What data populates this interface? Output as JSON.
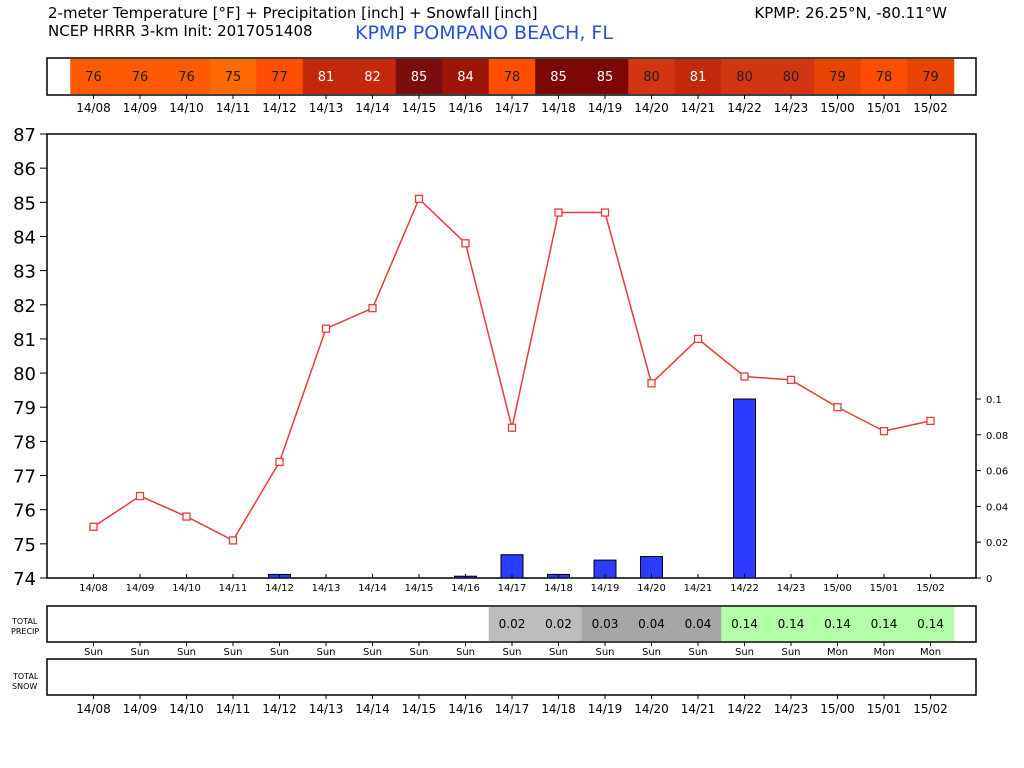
{
  "header": {
    "title_line1": "2-meter Temperature [°F] + Precipitation [inch] + Snowfall [inch]",
    "title_line2": "NCEP HRRR 3-km Init: 2017051408",
    "station_coords": "KPMP: 26.25°N, -80.11°W",
    "station_name": "KPMP POMPANO BEACH, FL"
  },
  "panels": {
    "precip_label": [
      "TOTAL",
      "PRECIP"
    ],
    "snow_label": [
      "TOTAL",
      "SNOW"
    ]
  },
  "chart_data": {
    "type": "line",
    "x": [
      "14/08",
      "14/09",
      "14/10",
      "14/11",
      "14/12",
      "14/13",
      "14/14",
      "14/15",
      "14/16",
      "14/17",
      "14/18",
      "14/19",
      "14/20",
      "14/21",
      "14/22",
      "14/23",
      "15/00",
      "15/01",
      "15/02"
    ],
    "temperature": [
      75.5,
      76.4,
      75.8,
      75.1,
      77.4,
      81.3,
      81.9,
      85.1,
      83.8,
      78.4,
      84.7,
      84.7,
      79.7,
      81.0,
      79.9,
      79.8,
      79.0,
      78.3,
      78.6
    ],
    "temperature_strip": [
      76,
      76,
      76,
      75,
      77,
      81,
      82,
      85,
      84,
      78,
      85,
      85,
      80,
      81,
      80,
      80,
      79,
      78,
      79
    ],
    "precip_hourly": [
      0,
      0,
      0,
      0,
      0.002,
      0,
      0,
      0,
      0.001,
      0.013,
      0.002,
      0.01,
      0.012,
      0,
      0.1,
      0,
      0,
      0,
      0
    ],
    "total_precip": [
      "",
      "",
      "",
      "",
      "",
      "",
      "",
      "",
      "",
      "0.02",
      "0.02",
      "0.03",
      "0.04",
      "0.04",
      "0.14",
      "0.14",
      "0.14",
      "0.14",
      "0.14"
    ],
    "day_names": [
      "Sun",
      "Sun",
      "Sun",
      "Sun",
      "Sun",
      "Sun",
      "Sun",
      "Sun",
      "Sun",
      "Sun",
      "Sun",
      "Sun",
      "Sun",
      "Sun",
      "Sun",
      "Sun",
      "Mon",
      "Mon",
      "Mon"
    ],
    "ylim": [
      74,
      87
    ],
    "y_ticks": [
      74,
      75,
      76,
      77,
      78,
      79,
      80,
      81,
      82,
      83,
      84,
      85,
      86,
      87
    ],
    "y2lim": [
      0,
      0.11
    ],
    "y2_ticks": [
      "0",
      "0.02",
      "0.04",
      "0.06",
      "0.08",
      "0.1"
    ],
    "colors": {
      "line": "#e83a3a",
      "bar": "#2b3cff",
      "precip_fill_low": "#bdbdbd",
      "precip_fill_mid": "#a6a6a6",
      "precip_fill_high": "#b3ffa8"
    },
    "strip_colors": [
      "#ff5a00",
      "#ff5a00",
      "#ff5a00",
      "#ff6a00",
      "#ff4e00",
      "#c3280a",
      "#c3280a",
      "#7a0d0d",
      "#9e1508",
      "#ff4e00",
      "#7d0606",
      "#7d0606",
      "#d13512",
      "#c3280a",
      "#d13512",
      "#d13512",
      "#e84400",
      "#ff4e00",
      "#e84400"
    ]
  }
}
